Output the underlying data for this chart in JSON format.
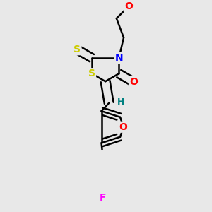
{
  "bg_color": "#e8e8e8",
  "bond_color": "#000000",
  "bond_lw": 1.8,
  "atom_colors": {
    "O": "#ff0000",
    "N": "#0000ff",
    "S": "#cccc00",
    "F": "#ff00ff",
    "H": "#008080",
    "C": "#000000"
  },
  "font_size": 10
}
